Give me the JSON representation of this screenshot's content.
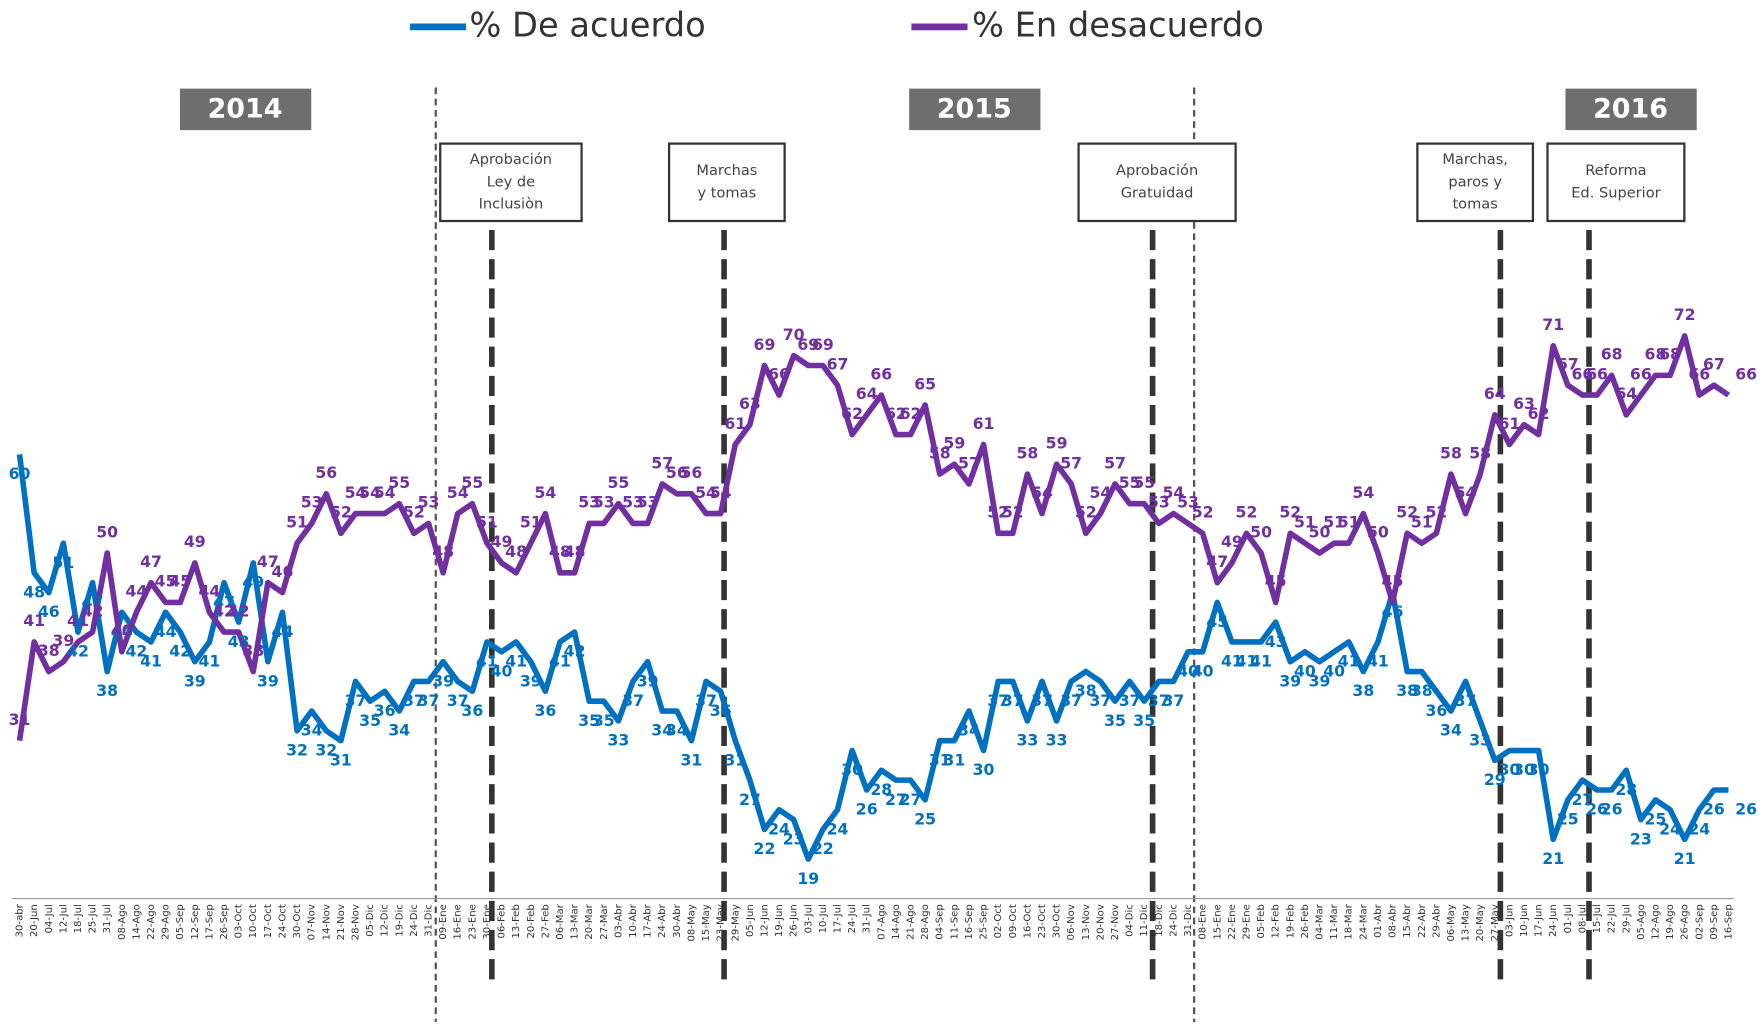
{
  "chart_data": {
    "type": "line",
    "categories": [
      "30-abr",
      "20-Jun",
      "04-Jul",
      "12-Jul",
      "18-Jul",
      "25-Jul",
      "31-Jul",
      "08-Ago",
      "14-Ago",
      "22-Ago",
      "29-Ago",
      "05-Sep",
      "12-Sep",
      "17-Sep",
      "26-Sep",
      "03-Oct",
      "10-Oct",
      "17-Oct",
      "24-Oct",
      "30-Oct",
      "07-Nov",
      "14-Nov",
      "21-Nov",
      "28-Nov",
      "05-Dic",
      "12-Dic",
      "19-Dic",
      "24-Dic",
      "31-Dic",
      "09-Ene",
      "16-Ene",
      "23-Ene",
      "30-Ene",
      "06-Feb",
      "13-Feb",
      "20-Feb",
      "27-Feb",
      "06-Mar",
      "13-Mar",
      "20-Mar",
      "27-Mar",
      "03-Abr",
      "10-Abr",
      "17-Abr",
      "24-Abr",
      "30-Abr",
      "08-May",
      "15-May",
      "23-May",
      "29-May",
      "05-Jun",
      "12-Jun",
      "19-Jun",
      "26-Jun",
      "03-Jul",
      "10-Jul",
      "17-Jul",
      "24-Jul",
      "31-Jul",
      "07-Ago",
      "14-Ago",
      "21-Ago",
      "28-Ago",
      "04-Sep",
      "11-Sep",
      "16-Sep",
      "25-Sep",
      "02-Oct",
      "09-Oct",
      "16-Oct",
      "23-Oct",
      "30-Oct",
      "06-Nov",
      "13-Nov",
      "20-Nov",
      "27-Nov",
      "04-Dic",
      "11-Dic",
      "18-Dic",
      "24-Dic",
      "31-Dic",
      "08-Ene",
      "15-Ene",
      "22-Ene",
      "29-Ene",
      "05-Feb",
      "12-Feb",
      "19-Feb",
      "26-Feb",
      "04-Mar",
      "11-Mar",
      "18-Mar",
      "24-Mar",
      "01-Abr",
      "08-Abr",
      "15-Abr",
      "22-Abr",
      "29-Abr",
      "06-May",
      "13-May",
      "20-May",
      "27-May",
      "03-Jun",
      "10-Jun",
      "17-Jun",
      "24-Jun",
      "01-Jul",
      "08-Jul",
      "15-Jul",
      "22-Jul",
      "29-Jul",
      "05-Ago",
      "12-Ago",
      "19-Ago",
      "26-Ago",
      "02-Sep",
      "09-Sep",
      "16-Sep"
    ],
    "series": [
      {
        "name": "% De acuerdo",
        "color": "#0070c0",
        "values": [
          60,
          48,
          46,
          51,
          42,
          47,
          38,
          44,
          42,
          41,
          44,
          42,
          39,
          41,
          47,
          43,
          49,
          39,
          44,
          32,
          34,
          32,
          31,
          37,
          35,
          36,
          34,
          37,
          37,
          39,
          37,
          36,
          41,
          40,
          41,
          39,
          36,
          41,
          42,
          35,
          35,
          33,
          37,
          39,
          34,
          34,
          31,
          37,
          36,
          31,
          27,
          22,
          24,
          23,
          19,
          22,
          24,
          30,
          26,
          28,
          27,
          27,
          25,
          31,
          31,
          34,
          30,
          37,
          37,
          33,
          37,
          33,
          37,
          38,
          37,
          35,
          37,
          35,
          37,
          37,
          40,
          40,
          45,
          41,
          41,
          41,
          43,
          39,
          40,
          39,
          40,
          41,
          38,
          41,
          46,
          38,
          38,
          36,
          34,
          37,
          33,
          29,
          30,
          30,
          30,
          21,
          25,
          27,
          26,
          26,
          28,
          23,
          25,
          24,
          21,
          24,
          26,
          26
        ]
      },
      {
        "name": "% En desacuerdo",
        "color": "#7030a0",
        "values": [
          31,
          41,
          38,
          39,
          41,
          42,
          50,
          40,
          44,
          47,
          45,
          45,
          49,
          44,
          42,
          42,
          38,
          47,
          46,
          51,
          53,
          56,
          52,
          54,
          54,
          54,
          55,
          52,
          53,
          48,
          54,
          55,
          51,
          49,
          48,
          51,
          54,
          48,
          48,
          53,
          53,
          55,
          53,
          53,
          57,
          56,
          56,
          54,
          54,
          61,
          63,
          69,
          66,
          70,
          69,
          69,
          67,
          62,
          64,
          66,
          62,
          62,
          65,
          58,
          59,
          57,
          61,
          52,
          52,
          58,
          54,
          59,
          57,
          52,
          54,
          57,
          55,
          55,
          53,
          54,
          53,
          52,
          47,
          49,
          52,
          50,
          45,
          52,
          51,
          50,
          51,
          51,
          54,
          50,
          45,
          52,
          51,
          52,
          58,
          54,
          58,
          64,
          61,
          63,
          62,
          71,
          67,
          66,
          66,
          68,
          64,
          66,
          68,
          68,
          72,
          66,
          67,
          66
        ]
      }
    ],
    "ylim": [
      15,
      80
    ],
    "year_labels": [
      "2014",
      "2015",
      "2016"
    ],
    "annotations": [
      [
        "Aprobación",
        "Ley de",
        "Inclusiòn"
      ],
      [
        "Marchas",
        "y tomas"
      ],
      [
        "Aprobación",
        "Gratuidad"
      ],
      [
        "Marchas,",
        "paros y",
        "tomas"
      ],
      [
        "Reforma",
        "Ed. Superior"
      ]
    ]
  }
}
